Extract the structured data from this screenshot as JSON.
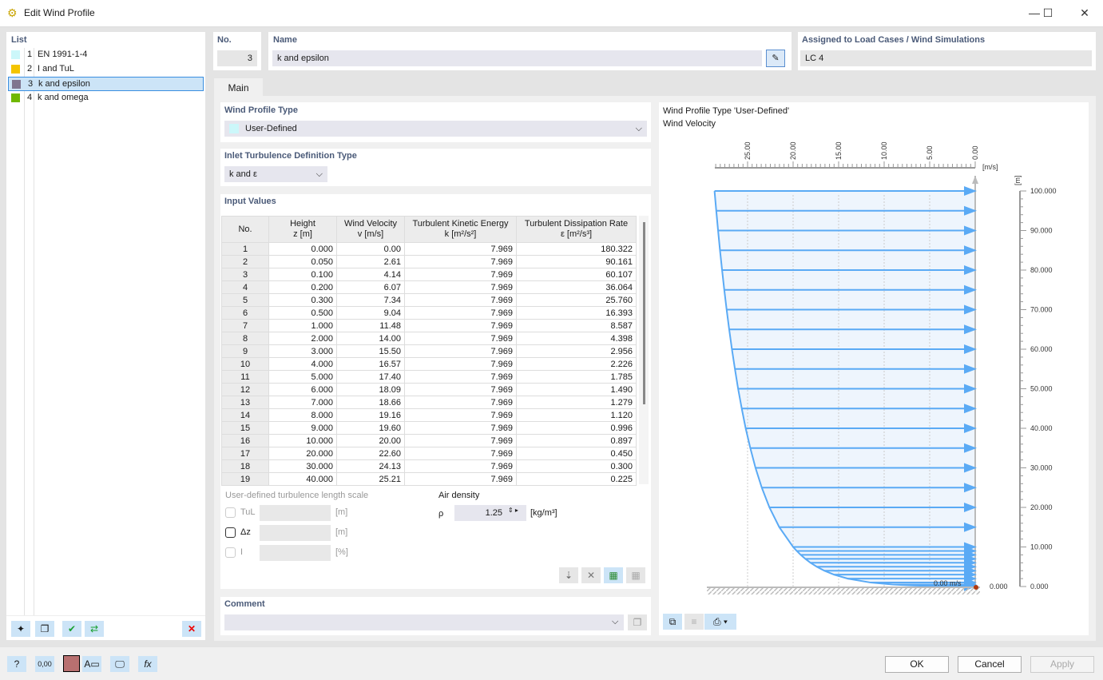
{
  "window": {
    "title": "Edit Wind Profile",
    "minimize": "—",
    "maximize": "☐",
    "close": "✕"
  },
  "list": {
    "header": "List",
    "items": [
      {
        "no": "1",
        "label": "EN 1991-1-4",
        "color": "#ccf7fa"
      },
      {
        "no": "2",
        "label": "I and TuL",
        "color": "#f4c400"
      },
      {
        "no": "3",
        "label": "k and epsilon",
        "color": "#7f7590",
        "selected": true
      },
      {
        "no": "4",
        "label": "k and omega",
        "color": "#70b800"
      }
    ]
  },
  "header": {
    "no_label": "No.",
    "no_value": "3",
    "name_label": "Name",
    "name_value": "k and epsilon",
    "assigned_label": "Assigned to Load Cases / Wind Simulations",
    "assigned_value": "LC 4"
  },
  "tabs": [
    {
      "label": "Main",
      "active": true
    }
  ],
  "profile_type": {
    "label": "Wind Profile Type",
    "value": "User-Defined",
    "swatch": "#ccf7fa"
  },
  "inlet": {
    "label": "Inlet Turbulence Definition Type",
    "value": "k and ε"
  },
  "input_values": {
    "label": "Input Values",
    "columns": [
      [
        "No.",
        ""
      ],
      [
        "Height",
        "z [m]"
      ],
      [
        "Wind Velocity",
        "v [m/s]"
      ],
      [
        "Turbulent Kinetic Energy",
        "k [m²/s²]"
      ],
      [
        "Turbulent Dissipation Rate",
        "ε [m²/s³]"
      ]
    ],
    "rows": [
      [
        "1",
        "0.000",
        "0.00",
        "7.969",
        "180.322"
      ],
      [
        "2",
        "0.050",
        "2.61",
        "7.969",
        "90.161"
      ],
      [
        "3",
        "0.100",
        "4.14",
        "7.969",
        "60.107"
      ],
      [
        "4",
        "0.200",
        "6.07",
        "7.969",
        "36.064"
      ],
      [
        "5",
        "0.300",
        "7.34",
        "7.969",
        "25.760"
      ],
      [
        "6",
        "0.500",
        "9.04",
        "7.969",
        "16.393"
      ],
      [
        "7",
        "1.000",
        "11.48",
        "7.969",
        "8.587"
      ],
      [
        "8",
        "2.000",
        "14.00",
        "7.969",
        "4.398"
      ],
      [
        "9",
        "3.000",
        "15.50",
        "7.969",
        "2.956"
      ],
      [
        "10",
        "4.000",
        "16.57",
        "7.969",
        "2.226"
      ],
      [
        "11",
        "5.000",
        "17.40",
        "7.969",
        "1.785"
      ],
      [
        "12",
        "6.000",
        "18.09",
        "7.969",
        "1.490"
      ],
      [
        "13",
        "7.000",
        "18.66",
        "7.969",
        "1.279"
      ],
      [
        "14",
        "8.000",
        "19.16",
        "7.969",
        "1.120"
      ],
      [
        "15",
        "9.000",
        "19.60",
        "7.969",
        "0.996"
      ],
      [
        "16",
        "10.000",
        "20.00",
        "7.969",
        "0.897"
      ],
      [
        "17",
        "20.000",
        "22.60",
        "7.969",
        "0.450"
      ],
      [
        "18",
        "30.000",
        "24.13",
        "7.969",
        "0.300"
      ],
      [
        "19",
        "40.000",
        "25.21",
        "7.969",
        "0.225"
      ]
    ]
  },
  "turbulence": {
    "label": "User-defined turbulence length scale",
    "tul": "TuL",
    "dz": "Δz",
    "i": "I",
    "unit_m": "[m]",
    "unit_pct": "[%]"
  },
  "air": {
    "label": "Air density",
    "symbol": "ρ",
    "value": "1.25",
    "unit": "[kg/m³]"
  },
  "comment": {
    "label": "Comment",
    "value": ""
  },
  "chart": {
    "title": "Wind Profile Type 'User-Defined'",
    "subtitle": "Wind Velocity",
    "x_unit": "[m/s]",
    "y_unit": "[m]",
    "ground_label": "0.00 m/s",
    "ground_z": "0.000"
  },
  "chart_data": {
    "type": "line",
    "xlabel": "[m/s]",
    "ylabel": "[m]",
    "xlim": [
      0,
      25
    ],
    "x_reversed": true,
    "ylim": [
      0,
      100
    ],
    "x_ticks": [
      "25.00",
      "20.00",
      "15.00",
      "10.00",
      "5.00",
      "0.00"
    ],
    "y_ticks": [
      "100.000",
      "90.000",
      "80.000",
      "70.000",
      "60.000",
      "50.000",
      "40.000",
      "30.000",
      "20.000",
      "10.000",
      "0.000"
    ],
    "z": [
      0,
      0.05,
      0.1,
      0.2,
      0.3,
      0.5,
      1,
      2,
      3,
      4,
      5,
      6,
      7,
      8,
      9,
      10,
      15,
      20,
      25,
      30,
      35,
      40,
      45,
      50,
      55,
      60,
      65,
      70,
      75,
      80,
      85,
      90,
      95,
      100
    ],
    "v": [
      0,
      2.61,
      4.14,
      6.07,
      7.34,
      9.04,
      11.48,
      14.0,
      15.5,
      16.57,
      17.4,
      18.09,
      18.66,
      19.16,
      19.6,
      20.0,
      21.52,
      22.6,
      23.44,
      24.13,
      24.7,
      25.21,
      25.64,
      26.04,
      26.39,
      26.72,
      27.02,
      27.3,
      27.56,
      27.8,
      28.03,
      28.24,
      28.44,
      28.63
    ],
    "color": "#5aaaf5"
  },
  "footer": {
    "ok": "OK",
    "cancel": "Cancel",
    "apply": "Apply"
  }
}
